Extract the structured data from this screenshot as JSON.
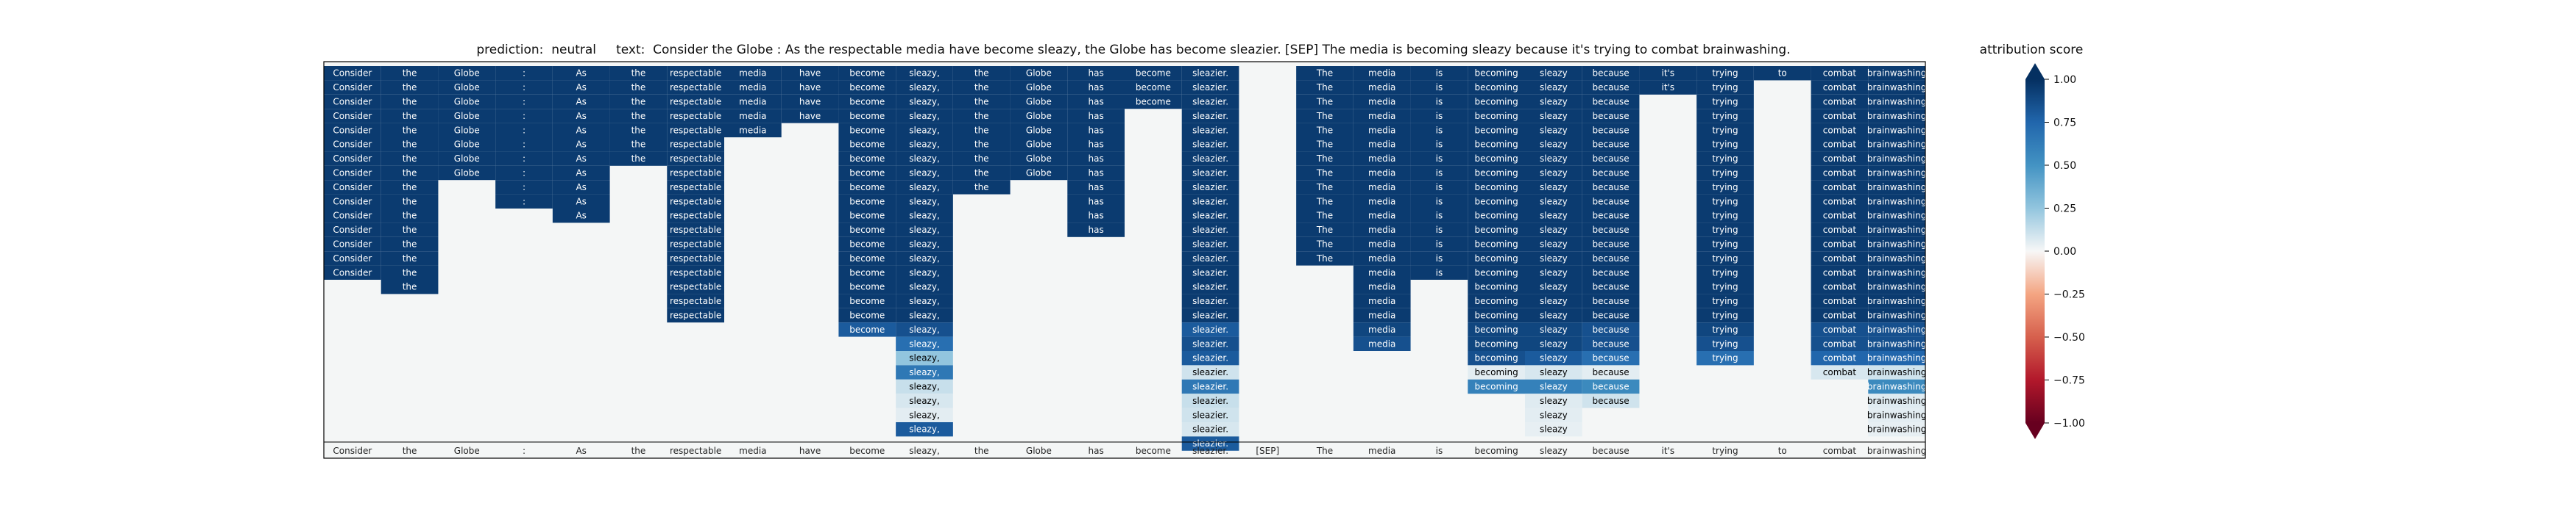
{
  "chart_data": {
    "type": "heatmap",
    "title_prefix": "prediction:",
    "prediction": "neutral",
    "text_prefix": "text:",
    "text": "Consider the Globe : As the respectable media have become sleazy, the Globe has become sleazier. [SEP] The media is becoming sleazy because it's trying to combat brainwashing.",
    "tokens": [
      "Consider",
      "the",
      "Globe",
      ":",
      "As",
      "the",
      "respectable",
      "media",
      "have",
      "become",
      "sleazy,",
      "the",
      "Globe",
      "has",
      "become",
      "sleazier.",
      "[SEP]",
      "The",
      "media",
      "is",
      "becoming",
      "sleazy",
      "because",
      "it's",
      "trying",
      "to",
      "combat",
      "brainwashing"
    ],
    "columns": [
      {
        "token": "Consider",
        "values": [
          0.95,
          0.95,
          0.95,
          0.95,
          0.95,
          0.95,
          0.95,
          0.95,
          0.95,
          0.95,
          0.95,
          0.95,
          0.95,
          0.95,
          0.95
        ]
      },
      {
        "token": "the",
        "values": [
          0.95,
          0.95,
          0.95,
          0.95,
          0.95,
          0.95,
          0.95,
          0.95,
          0.95,
          0.95,
          0.95,
          0.95,
          0.95,
          0.95,
          0.95,
          0.95
        ]
      },
      {
        "token": "Globe",
        "values": [
          0.95,
          0.95,
          0.95,
          0.95,
          0.95,
          0.95,
          0.95,
          0.95
        ]
      },
      {
        "token": ":",
        "values": [
          0.95,
          0.95,
          0.95,
          0.95,
          0.95,
          0.95,
          0.95,
          0.95,
          0.95,
          0.95
        ]
      },
      {
        "token": "As",
        "values": [
          0.95,
          0.95,
          0.95,
          0.95,
          0.95,
          0.95,
          0.95,
          0.95,
          0.95,
          0.95,
          0.95
        ]
      },
      {
        "token": "the",
        "values": [
          0.95,
          0.95,
          0.95,
          0.95,
          0.95,
          0.95,
          0.95
        ]
      },
      {
        "token": "respectable",
        "values": [
          0.95,
          0.95,
          0.95,
          0.95,
          0.95,
          0.95,
          0.95,
          0.95,
          0.95,
          0.95,
          0.95,
          0.95,
          0.95,
          0.95,
          0.95,
          0.95,
          0.95,
          0.95
        ]
      },
      {
        "token": "media",
        "values": [
          0.95,
          0.95,
          0.95,
          0.95,
          0.95
        ]
      },
      {
        "token": "have",
        "values": [
          0.95,
          0.95,
          0.95,
          0.95
        ]
      },
      {
        "token": "become",
        "values": [
          0.95,
          0.95,
          0.95,
          0.95,
          0.95,
          0.95,
          0.95,
          0.95,
          0.95,
          0.95,
          0.95,
          0.95,
          0.95,
          0.95,
          0.95,
          0.95,
          0.95,
          0.95,
          0.8
        ]
      },
      {
        "token": "sleazy,",
        "values": [
          0.95,
          0.95,
          0.95,
          0.95,
          0.95,
          0.95,
          0.95,
          0.95,
          0.95,
          0.95,
          0.95,
          0.95,
          0.95,
          0.95,
          0.95,
          0.95,
          0.95,
          0.95,
          0.85,
          0.7,
          0.25,
          0.65,
          0.12,
          0.08,
          0.05,
          0.8
        ]
      },
      {
        "token": "the",
        "values": [
          0.95,
          0.95,
          0.95,
          0.95,
          0.95,
          0.95,
          0.95,
          0.95,
          0.95
        ]
      },
      {
        "token": "Globe",
        "values": [
          0.95,
          0.95,
          0.95,
          0.95,
          0.95,
          0.95,
          0.95,
          0.95
        ]
      },
      {
        "token": "has",
        "values": [
          0.95,
          0.95,
          0.95,
          0.95,
          0.95,
          0.95,
          0.95,
          0.95,
          0.95,
          0.95,
          0.95,
          0.95
        ]
      },
      {
        "token": "become",
        "values": [
          0.95,
          0.95,
          0.95
        ]
      },
      {
        "token": "sleazier.",
        "values": [
          0.95,
          0.95,
          0.95,
          0.95,
          0.95,
          0.95,
          0.95,
          0.95,
          0.95,
          0.95,
          0.95,
          0.95,
          0.95,
          0.95,
          0.95,
          0.95,
          0.95,
          0.95,
          0.8,
          0.85,
          0.8,
          0.1,
          0.65,
          0.12,
          0.1,
          0.08,
          0.8
        ]
      },
      {
        "token": "[SEP]",
        "values": []
      },
      {
        "token": "The",
        "values": [
          0.95,
          0.95,
          0.95,
          0.95,
          0.95,
          0.95,
          0.95,
          0.95,
          0.95,
          0.95,
          0.95,
          0.95,
          0.95,
          0.95
        ]
      },
      {
        "token": "media",
        "values": [
          0.95,
          0.95,
          0.95,
          0.95,
          0.95,
          0.95,
          0.95,
          0.95,
          0.95,
          0.95,
          0.95,
          0.95,
          0.95,
          0.95,
          0.95,
          0.95,
          0.95,
          0.95,
          0.9,
          0.85
        ]
      },
      {
        "token": "is",
        "values": [
          0.95,
          0.95,
          0.95,
          0.95,
          0.95,
          0.95,
          0.95,
          0.95,
          0.95,
          0.95,
          0.95,
          0.95,
          0.95,
          0.95,
          0.95
        ]
      },
      {
        "token": "becoming",
        "values": [
          0.95,
          0.95,
          0.95,
          0.95,
          0.95,
          0.95,
          0.95,
          0.95,
          0.95,
          0.95,
          0.95,
          0.95,
          0.95,
          0.95,
          0.95,
          0.95,
          0.95,
          0.95,
          0.9,
          0.9,
          0.85,
          0.05,
          0.6
        ]
      },
      {
        "token": "sleazy",
        "values": [
          0.95,
          0.95,
          0.95,
          0.95,
          0.95,
          0.95,
          0.95,
          0.95,
          0.95,
          0.95,
          0.95,
          0.95,
          0.95,
          0.95,
          0.95,
          0.95,
          0.95,
          0.95,
          0.9,
          0.9,
          0.8,
          0.08,
          0.6,
          0.06,
          0.05,
          0.04
        ]
      },
      {
        "token": "because",
        "values": [
          0.95,
          0.95,
          0.95,
          0.95,
          0.95,
          0.95,
          0.95,
          0.95,
          0.95,
          0.95,
          0.95,
          0.95,
          0.95,
          0.95,
          0.95,
          0.95,
          0.95,
          0.95,
          0.85,
          0.85,
          0.7,
          0.05,
          0.55,
          0.1
        ]
      },
      {
        "token": "it's",
        "values": [
          0.95,
          0.95
        ]
      },
      {
        "token": "trying",
        "values": [
          0.95,
          0.95,
          0.95,
          0.95,
          0.95,
          0.95,
          0.95,
          0.95,
          0.95,
          0.95,
          0.95,
          0.95,
          0.95,
          0.95,
          0.95,
          0.95,
          0.95,
          0.95,
          0.9,
          0.85,
          0.7
        ]
      },
      {
        "token": "to",
        "values": [
          0.95
        ]
      },
      {
        "token": "combat",
        "values": [
          0.95,
          0.95,
          0.95,
          0.95,
          0.95,
          0.95,
          0.95,
          0.95,
          0.95,
          0.95,
          0.95,
          0.95,
          0.95,
          0.95,
          0.95,
          0.95,
          0.95,
          0.95,
          0.85,
          0.85,
          0.75,
          0.08
        ]
      },
      {
        "token": "brainwashing",
        "values": [
          0.95,
          0.95,
          0.95,
          0.95,
          0.95,
          0.95,
          0.95,
          0.95,
          0.95,
          0.95,
          0.95,
          0.95,
          0.95,
          0.95,
          0.95,
          0.95,
          0.95,
          0.95,
          0.85,
          0.85,
          0.75,
          0.1,
          0.55,
          0.06,
          0.05,
          0.04
        ]
      }
    ],
    "colorbar": {
      "label": "attribution score",
      "range": [
        -1.0,
        1.0
      ],
      "ticks": [
        "1.00",
        "0.75",
        "0.50",
        "0.25",
        "0.00",
        "−0.25",
        "−0.50",
        "−0.75",
        "−1.00"
      ],
      "colormap": "RdBu",
      "extend": "both"
    },
    "colors": {
      "background": "#f4f6f6",
      "strong_positive": "#053061",
      "positive": "#2166ac",
      "neutral": "#f7f7f7",
      "negative": "#b2182b",
      "strong_negative": "#67001f"
    }
  }
}
